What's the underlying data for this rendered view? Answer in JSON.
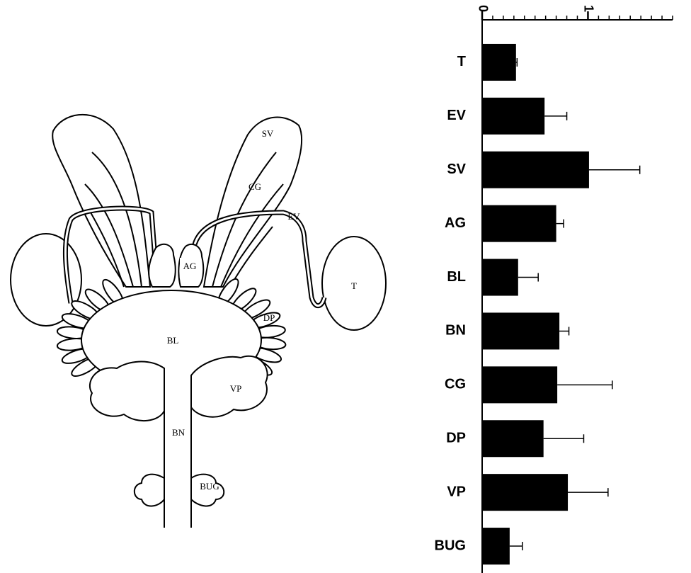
{
  "diagram": {
    "labels": [
      "SV",
      "CG",
      "EV",
      "AG",
      "T",
      "DP",
      "BL",
      "VP",
      "BN",
      "BUG"
    ]
  },
  "chart_data": {
    "type": "bar",
    "orientation": "horizontal",
    "categories": [
      "T",
      "EV",
      "SV",
      "AG",
      "BL",
      "BN",
      "CG",
      "DP",
      "VP",
      "BUG"
    ],
    "values": [
      0.32,
      0.59,
      1.01,
      0.7,
      0.34,
      0.73,
      0.71,
      0.58,
      0.81,
      0.26
    ],
    "errors": [
      0.01,
      0.21,
      0.48,
      0.07,
      0.19,
      0.09,
      0.52,
      0.38,
      0.38,
      0.12
    ],
    "color": "#000000",
    "xlim": [
      0,
      1.8
    ],
    "xticks": [
      0,
      1
    ],
    "xminor_ticks": [
      0.1,
      0.2,
      0.3,
      0.4,
      0.5,
      0.6,
      0.7,
      0.8,
      0.9,
      1.1,
      1.2,
      1.3,
      1.4,
      1.5,
      1.6,
      1.7,
      1.8
    ]
  }
}
